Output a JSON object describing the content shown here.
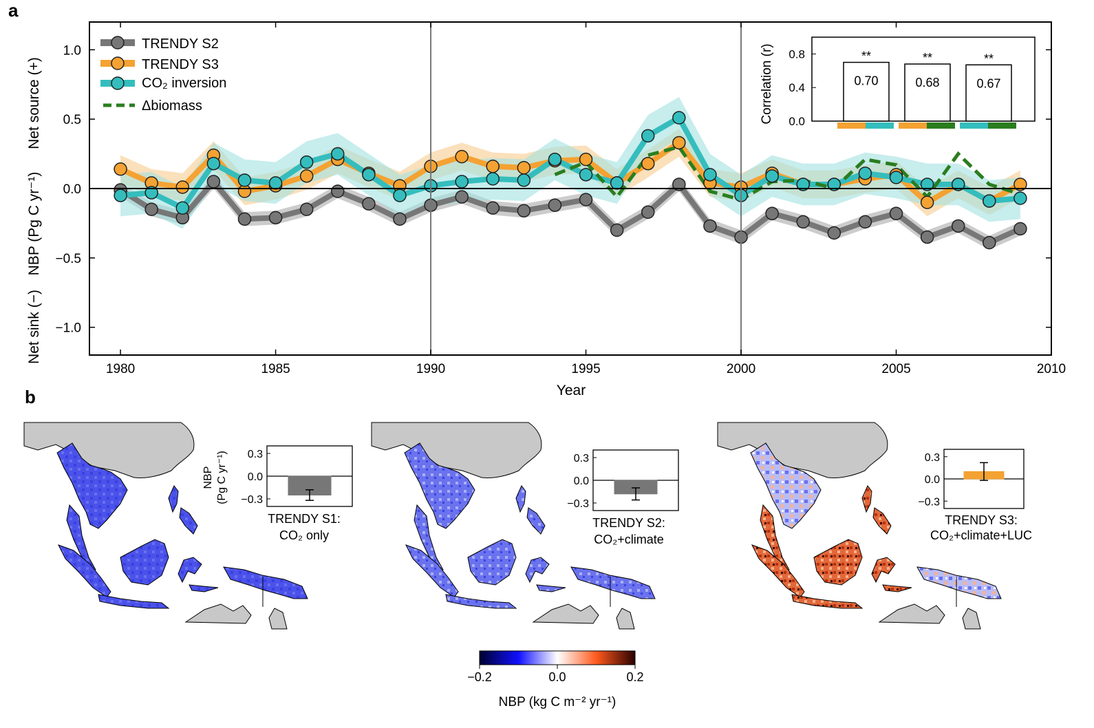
{
  "panel_a": {
    "label": "a",
    "y_tick_labels": [
      "1.0",
      "0.5",
      "0.0",
      "−0.5",
      "−1.0"
    ],
    "x_tick_labels": [
      "1980",
      "1985",
      "1990",
      "1995",
      "2000",
      "2005",
      "2010"
    ],
    "xlabel": "Year",
    "ylabel_source": "Net source (+)",
    "ylabel_main": "NBP (Pg C yr⁻¹)",
    "ylabel_sink": "Net sink (−)",
    "legend": [
      "TRENDY S2",
      "TRENDY S3",
      "CO₂ inversion",
      "Δbiomass"
    ]
  },
  "inset": {
    "ylabel": "Correlation (r)",
    "y_tick_labels": [
      "0.8",
      "0.4",
      "0.0"
    ],
    "stars": [
      "**",
      "**",
      "**"
    ],
    "value_labels": [
      "0.70",
      "0.68",
      "0.67"
    ]
  },
  "panel_b": {
    "label": "b",
    "maps": [
      {
        "title_1": "TRENDY S1:",
        "title_2": "CO₂ only",
        "ylabel_1": "NBP",
        "ylabel_2": "(Pg C yr⁻¹)",
        "ticks": [
          "0.3",
          "0.0",
          "−0.3"
        ]
      },
      {
        "title_1": "TRENDY S2:",
        "title_2": "CO₂+climate",
        "ylabel_1": "",
        "ylabel_2": "",
        "ticks": [
          "0.3",
          "0.0",
          "−0.3"
        ]
      },
      {
        "title_1": "TRENDY S3:",
        "title_2": "CO₂+climate+LUC",
        "ylabel_1": "",
        "ylabel_2": "",
        "ticks": [
          "0.3",
          "0.0",
          "−0.3"
        ]
      }
    ],
    "colorbar": {
      "ticks": [
        "−0.2",
        "0.0",
        "0.2"
      ],
      "label": "NBP (kg C m⁻² yr⁻¹)"
    }
  },
  "colors": {
    "s2": "#777777",
    "s3": "#f4a232",
    "inversion": "#35bdbd",
    "biomass": "#2a7d1f",
    "s2_band": "#bbbbbb",
    "s3_band": "#f8d6a4",
    "inv_band": "#a2e1e1",
    "bar_gray": "#777777",
    "bar_orange": "#f4a232"
  },
  "chart_data": [
    {
      "type": "line",
      "xlabel": "Year",
      "ylabel": "NBP (Pg C yr⁻¹)",
      "xlim": [
        1979,
        2010
      ],
      "ylim": [
        -1.2,
        1.2
      ],
      "x": [
        1980,
        1981,
        1982,
        1983,
        1984,
        1985,
        1986,
        1987,
        1988,
        1989,
        1990,
        1991,
        1992,
        1993,
        1994,
        1995,
        1996,
        1997,
        1998,
        1999,
        2000,
        2001,
        2002,
        2003,
        2004,
        2005,
        2006,
        2007,
        2008,
        2009
      ],
      "series": [
        {
          "name": "TRENDY S2",
          "values": [
            -0.01,
            -0.15,
            -0.21,
            0.05,
            -0.22,
            -0.21,
            -0.15,
            -0.02,
            -0.11,
            -0.22,
            -0.12,
            -0.06,
            -0.14,
            -0.16,
            -0.12,
            -0.08,
            -0.3,
            -0.17,
            0.03,
            -0.27,
            -0.35,
            -0.18,
            -0.24,
            -0.32,
            -0.24,
            -0.18,
            -0.35,
            -0.27,
            -0.39,
            -0.29
          ],
          "band": 0.05
        },
        {
          "name": "TRENDY S3",
          "values": [
            0.14,
            0.04,
            0.01,
            0.24,
            -0.02,
            0.02,
            0.09,
            0.21,
            0.11,
            0.02,
            0.16,
            0.23,
            0.16,
            0.15,
            0.2,
            0.21,
            0.04,
            0.18,
            0.33,
            0.04,
            0.01,
            0.11,
            0.03,
            0.03,
            0.07,
            0.1,
            -0.1,
            0.03,
            -0.09,
            0.03
          ],
          "band": 0.1
        },
        {
          "name": "CO₂ inversion",
          "values": [
            -0.05,
            -0.03,
            -0.14,
            0.18,
            0.06,
            0.04,
            0.19,
            0.25,
            0.1,
            -0.05,
            0.02,
            0.05,
            0.07,
            0.06,
            0.21,
            0.1,
            0.04,
            0.38,
            0.51,
            0.1,
            -0.05,
            0.09,
            0.03,
            0.03,
            0.11,
            0.08,
            0.03,
            0.03,
            -0.09,
            -0.07
          ],
          "band": 0.15
        },
        {
          "name": "Δbiomass",
          "x": [
            1994,
            1995,
            1996,
            1997,
            1998,
            1999,
            2000,
            2001,
            2002,
            2003,
            2004,
            2005,
            2006,
            2007,
            2008,
            2009
          ],
          "values": [
            0.1,
            0.19,
            -0.06,
            0.24,
            0.3,
            -0.02,
            -0.08,
            0.05,
            0.06,
            0.0,
            0.21,
            0.17,
            -0.06,
            0.25,
            0.03,
            -0.04
          ]
        }
      ]
    },
    {
      "type": "bar",
      "ylabel": "Correlation (r)",
      "ylim": [
        0,
        1
      ],
      "categories": [
        "TRENDY S3 vs CO₂ inversion",
        "TRENDY S3 vs Δbiomass",
        "CO₂ inversion vs Δbiomass"
      ],
      "values": [
        0.7,
        0.68,
        0.67
      ]
    },
    {
      "type": "bar",
      "ylabel": "NBP (Pg C yr⁻¹)",
      "ylim": [
        -0.4,
        0.4
      ],
      "categories": [
        "TRENDY S1: CO₂ only",
        "TRENDY S2: CO₂+climate",
        "TRENDY S3: CO₂+climate+LUC"
      ],
      "values": [
        -0.25,
        -0.18,
        0.1
      ],
      "error": [
        0.07,
        0.08,
        0.12
      ]
    }
  ]
}
